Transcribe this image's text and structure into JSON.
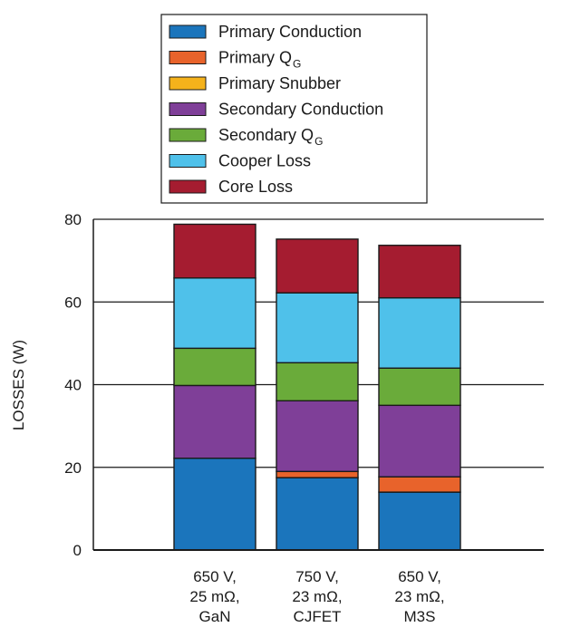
{
  "chart_data": {
    "type": "bar",
    "stacked": true,
    "ylabel": "LOSSES (W)",
    "ylim": [
      0,
      80
    ],
    "yticks": [
      "0",
      "20",
      "40",
      "60",
      "80"
    ],
    "categories": [
      [
        "650 V,",
        "25 mΩ,",
        "GaN"
      ],
      [
        "750 V,",
        "23 mΩ,",
        "CJFET"
      ],
      [
        "650 V,",
        "23 mΩ,",
        "M3S"
      ]
    ],
    "series": [
      {
        "name": "Primary Conduction",
        "name_main": "Primary Conduction",
        "name_sub": "",
        "color": "#1b75bc",
        "values": [
          22.2,
          17.5,
          14.0
        ]
      },
      {
        "name": "Primary QG",
        "name_main": "Primary Q",
        "name_sub": "G",
        "color": "#e8632b",
        "values": [
          0.0,
          1.5,
          3.7
        ]
      },
      {
        "name": "Primary Snubber",
        "name_main": "Primary Snubber",
        "name_sub": "",
        "color": "#f5b21b",
        "values": [
          0.0,
          0.0,
          0.0
        ]
      },
      {
        "name": "Secondary Conduction",
        "name_main": "Secondary Conduction",
        "name_sub": "",
        "color": "#7f3f98",
        "values": [
          17.6,
          17.1,
          17.3
        ]
      },
      {
        "name": "Secondary QG",
        "name_main": "Secondary Q",
        "name_sub": "G",
        "color": "#6aab3a",
        "values": [
          9.0,
          9.2,
          9.0
        ]
      },
      {
        "name": "Cooper Loss",
        "name_main": "Cooper Loss",
        "name_sub": "",
        "color": "#4fc1ea",
        "values": [
          17.0,
          16.9,
          17.0
        ]
      },
      {
        "name": "Core Loss",
        "name_main": "Core Loss",
        "name_sub": "",
        "color": "#a51c30",
        "values": [
          13.0,
          13.0,
          12.7
        ]
      }
    ],
    "legend_position": "top",
    "grid": true
  }
}
